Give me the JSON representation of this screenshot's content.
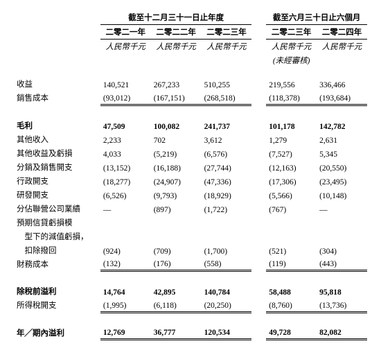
{
  "header": {
    "period1_title": "截至十二月三十一日止年度",
    "period2_title": "截至六月三十日止六個月",
    "col1": "二零二一年",
    "col2": "二零二二年",
    "col3": "二零二三年",
    "col4": "二零二三年",
    "col5": "二零二四年",
    "unit": "人民幣千元",
    "audit_note": "(未經審核)"
  },
  "rows": {
    "revenue_label": "收益",
    "revenue": {
      "c1": "140,521",
      "c2": "267,233",
      "c3": "510,255",
      "c4": "219,556",
      "c5": "336,466"
    },
    "cogs_label": "銷售成本",
    "cogs": {
      "c1": "(93,012)",
      "c2": "(167,151)",
      "c3": "(268,518)",
      "c4": "(118,378)",
      "c5": "(193,684)"
    },
    "gross_profit_label": "毛利",
    "gross_profit": {
      "c1": "47,509",
      "c2": "100,082",
      "c3": "241,737",
      "c4": "101,178",
      "c5": "142,782"
    },
    "other_income_label": "其他收入",
    "other_income": {
      "c1": "2,233",
      "c2": "702",
      "c3": "3,612",
      "c4": "1,279",
      "c5": "2,631"
    },
    "other_gain_label": "其他收益及虧損",
    "other_gain": {
      "c1": "4,033",
      "c2": "(5,219)",
      "c3": "(6,576)",
      "c4": "(7,527)",
      "c5": "5,345"
    },
    "selling_label": "分銷及銷售開支",
    "selling": {
      "c1": "(13,152)",
      "c2": "(16,188)",
      "c3": "(27,744)",
      "c4": "(12,163)",
      "c5": "(20,550)"
    },
    "admin_label": "行政開支",
    "admin": {
      "c1": "(18,277)",
      "c2": "(24,907)",
      "c3": "(47,336)",
      "c4": "(17,306)",
      "c5": "(23,495)"
    },
    "rnd_label": "研發開支",
    "rnd": {
      "c1": "(6,526)",
      "c2": "(9,793)",
      "c3": "(18,929)",
      "c4": "(5,566)",
      "c5": "(10,148)"
    },
    "assoc_label": "分佔聯營公司業績",
    "assoc": {
      "c1": "—",
      "c2": "(897)",
      "c3": "(1,722)",
      "c4": "(767)",
      "c5": "—"
    },
    "ecl_label1": "預期信貸虧損模",
    "ecl_label2": "　型下的減值虧損，",
    "ecl_label3": "　扣除撥回",
    "ecl": {
      "c1": "(924)",
      "c2": "(709)",
      "c3": "(1,700)",
      "c4": "(521)",
      "c5": "(304)"
    },
    "finance_label": "財務成本",
    "finance": {
      "c1": "(132)",
      "c2": "(176)",
      "c3": "(558)",
      "c4": "(119)",
      "c5": "(443)"
    },
    "pbt_label": "除稅前溢利",
    "pbt": {
      "c1": "14,764",
      "c2": "42,895",
      "c3": "140,784",
      "c4": "58,488",
      "c5": "95,818"
    },
    "tax_label": "所得稅開支",
    "tax": {
      "c1": "(1,995)",
      "c2": "(6,118)",
      "c3": "(20,250)",
      "c4": "(8,760)",
      "c5": "(13,736)"
    },
    "net_label": "年╱期內溢利",
    "net": {
      "c1": "12,769",
      "c2": "36,777",
      "c3": "120,534",
      "c4": "49,728",
      "c5": "82,082"
    }
  }
}
